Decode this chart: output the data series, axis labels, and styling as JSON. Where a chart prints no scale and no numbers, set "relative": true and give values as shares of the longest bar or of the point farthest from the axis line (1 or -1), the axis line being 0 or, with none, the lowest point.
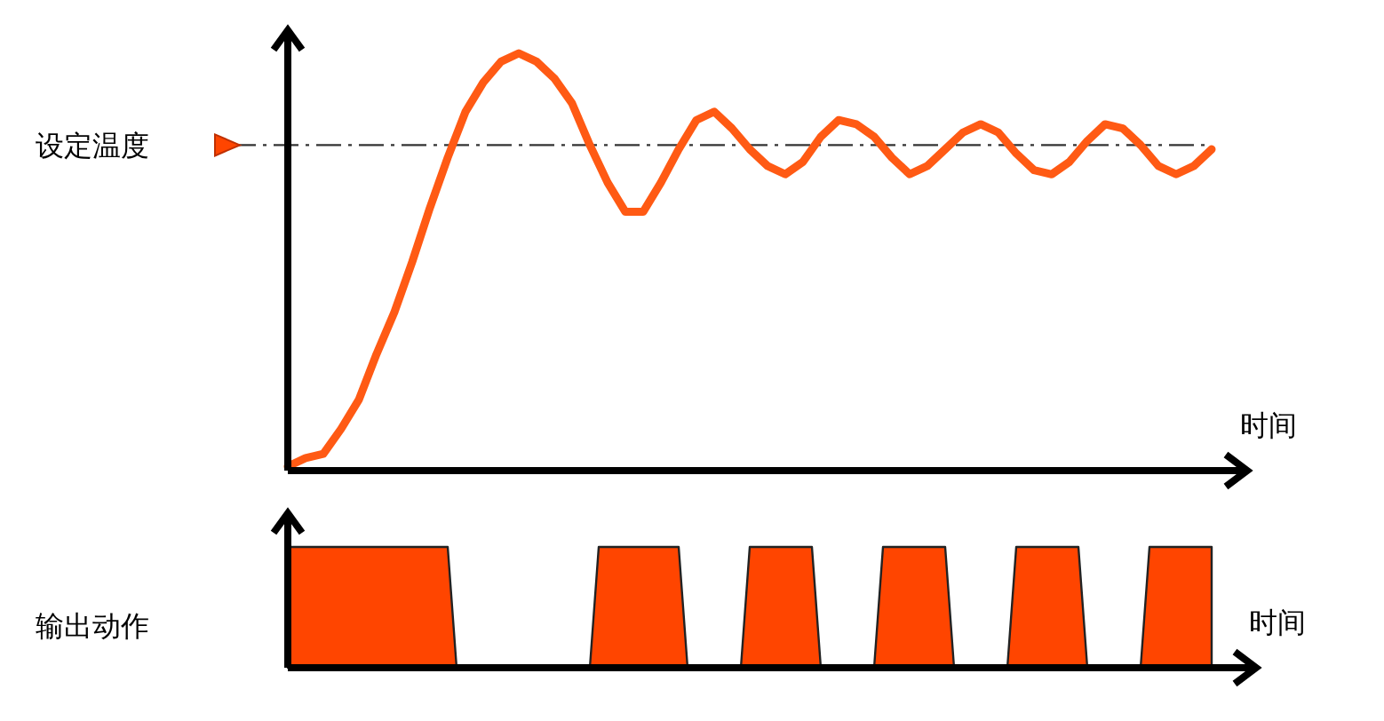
{
  "chart_data": [
    {
      "type": "line",
      "relative": true,
      "xlabel": "时间",
      "color": "#ff5a14",
      "categories": [
        null,
        null,
        null,
        null,
        null,
        null,
        null,
        null,
        null,
        null,
        null,
        null,
        null,
        null,
        null,
        null,
        null,
        null,
        null,
        null,
        null,
        null,
        null,
        null,
        null,
        null,
        null,
        null,
        null,
        null,
        null,
        null,
        null,
        null,
        null,
        null,
        null,
        null,
        null,
        null,
        null,
        null,
        null,
        null,
        null,
        null,
        null,
        null,
        null,
        null,
        null,
        null,
        null
      ],
      "values": [
        0.01,
        0.03,
        0.04,
        0.1,
        0.17,
        0.28,
        0.38,
        0.5,
        0.63,
        0.75,
        0.86,
        0.93,
        0.98,
        1.0,
        0.98,
        0.94,
        0.88,
        0.78,
        0.69,
        0.62,
        0.62,
        0.69,
        0.77,
        0.84,
        0.86,
        0.82,
        0.77,
        0.73,
        0.71,
        0.74,
        0.8,
        0.84,
        0.83,
        0.8,
        0.75,
        0.71,
        0.73,
        0.77,
        0.81,
        0.83,
        0.81,
        0.76,
        0.72,
        0.71,
        0.74,
        0.79,
        0.83,
        0.82,
        0.78,
        0.73,
        0.71,
        0.73,
        0.77
      ],
      "ref_lines": [
        {
          "axis": "y",
          "value": 0.78,
          "label": "设定温度",
          "line_style": "dashed",
          "color": "#333333"
        }
      ]
    },
    {
      "type": "area",
      "relative": true,
      "xlabel": "时间",
      "ylabel": "输出动作",
      "color": "#ff4500",
      "categories": [
        null,
        null,
        null,
        null,
        null,
        null,
        null,
        null,
        null,
        null,
        null,
        null,
        null,
        null,
        null,
        null,
        null,
        null,
        null,
        null,
        null,
        null,
        null,
        null,
        null,
        null,
        null,
        null,
        null,
        null,
        null,
        null,
        null,
        null,
        null,
        null,
        null,
        null,
        null,
        null,
        null,
        null,
        null,
        null,
        null,
        null,
        null,
        null,
        null,
        null,
        null,
        null,
        null,
        null,
        null,
        null,
        null,
        null,
        null,
        null,
        null,
        null,
        null,
        null,
        null,
        null,
        null,
        null,
        null,
        null,
        null,
        null,
        null,
        null,
        null,
        null,
        null,
        null,
        null,
        null,
        null,
        null,
        null,
        null,
        null,
        null,
        null,
        null,
        null,
        null,
        null,
        null,
        null,
        null,
        null,
        null,
        null,
        null,
        null,
        null,
        null,
        null,
        null,
        null,
        null
      ],
      "values": [
        1,
        1,
        1,
        1,
        1,
        1,
        1,
        1,
        1,
        1,
        1,
        1,
        1,
        1,
        1,
        1,
        1,
        1,
        1,
        0,
        0,
        0,
        0,
        0,
        0,
        0,
        0,
        0,
        0,
        0,
        0,
        0,
        0,
        0,
        0,
        1,
        1,
        1,
        1,
        1,
        1,
        1,
        1,
        1,
        1,
        0,
        0,
        0,
        0,
        0,
        0,
        0,
        1,
        1,
        1,
        1,
        1,
        1,
        1,
        1,
        0,
        0,
        0,
        0,
        0,
        0,
        0,
        1,
        1,
        1,
        1,
        1,
        1,
        1,
        1,
        0,
        0,
        0,
        0,
        0,
        0,
        0,
        1,
        1,
        1,
        1,
        1,
        1,
        1,
        1,
        0,
        0,
        0,
        0,
        0,
        0,
        0,
        1,
        1,
        1,
        1,
        1,
        1,
        1,
        1
      ]
    }
  ]
}
